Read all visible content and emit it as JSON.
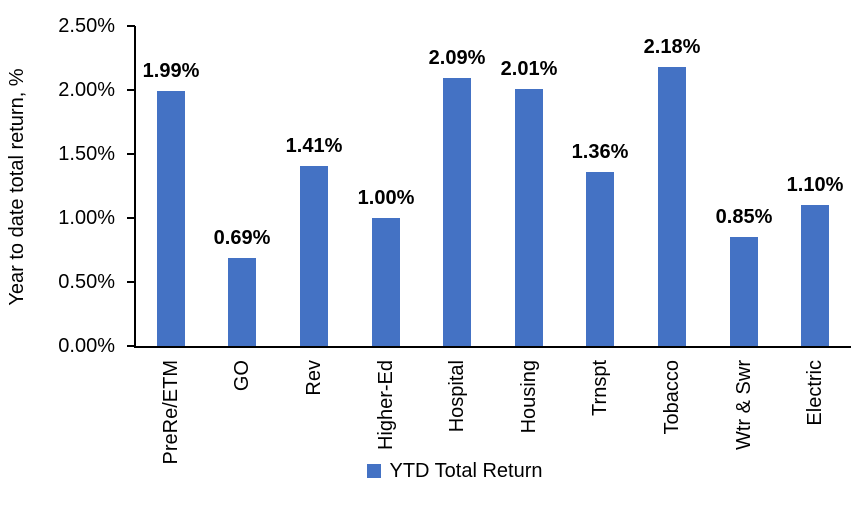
{
  "chart_data": {
    "type": "bar",
    "title": "",
    "y_axis_title": "Year to date total return, %",
    "xlabel": "",
    "ylabel": "Year to date total return, %",
    "categories": [
      "PreRe/ETM",
      "GO",
      "Rev",
      "Higher-Ed",
      "Hospital",
      "Housing",
      "Trnspt",
      "Tobacco",
      "Wtr & Swr",
      "Electric"
    ],
    "series": [
      {
        "name": "YTD Total Return",
        "values": [
          1.99,
          0.69,
          1.41,
          1.0,
          2.09,
          2.01,
          1.36,
          2.18,
          0.85,
          1.1
        ]
      }
    ],
    "value_labels": [
      "1.99%",
      "0.69%",
      "1.41%",
      "1.00%",
      "2.09%",
      "2.01%",
      "1.36%",
      "2.18%",
      "0.85%",
      "1.10%"
    ],
    "y_ticks": [
      {
        "value": 0.0,
        "label": "0.00%"
      },
      {
        "value": 0.5,
        "label": "0.50%"
      },
      {
        "value": 1.0,
        "label": "1.00%"
      },
      {
        "value": 1.5,
        "label": "1.50%"
      },
      {
        "value": 2.0,
        "label": "2.00%"
      },
      {
        "value": 2.5,
        "label": "2.50%"
      }
    ],
    "ylim": [
      0,
      2.5
    ],
    "grid": false,
    "legend_position": "bottom",
    "colors": {
      "bar": "#4472C4",
      "axis": "#000000",
      "text": "#000000"
    }
  },
  "legend": {
    "label": "YTD Total Return"
  }
}
